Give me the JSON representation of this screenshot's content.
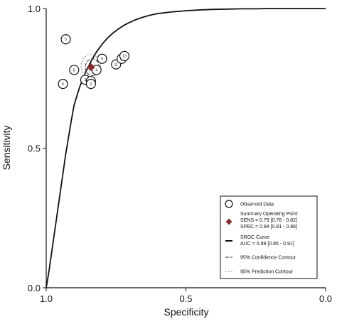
{
  "chart_data": {
    "type": "scatter",
    "title": "",
    "xlabel": "Specificity",
    "ylabel": "Sensitivity",
    "x_axis_reversed": true,
    "xlim": [
      1.0,
      0.0
    ],
    "ylim": [
      0.0,
      1.0
    ],
    "x_ticks": [
      {
        "value": 1.0,
        "label": "1.0"
      },
      {
        "value": 0.5,
        "label": "0.5"
      },
      {
        "value": 0.0,
        "label": "0.0"
      }
    ],
    "y_ticks": [
      {
        "value": 1.0,
        "label": "1.0"
      },
      {
        "value": 0.5,
        "label": "0.5"
      },
      {
        "value": 0.0,
        "label": "0.0"
      }
    ],
    "grid": false,
    "legend_position": "bottom-right",
    "observed_data": [
      {
        "label": "5",
        "specificity": 0.93,
        "sensitivity": 0.89
      },
      {
        "label": "8",
        "specificity": 0.9,
        "sensitivity": 0.78
      },
      {
        "label": "6",
        "specificity": 0.94,
        "sensitivity": 0.73
      },
      {
        "label": "9",
        "specificity": 0.8,
        "sensitivity": 0.82
      },
      {
        "label": "4",
        "specificity": 0.82,
        "sensitivity": 0.78
      },
      {
        "label": "3",
        "specificity": 0.86,
        "sensitivity": 0.745
      },
      {
        "label": "1",
        "specificity": 0.84,
        "sensitivity": 0.74
      },
      {
        "label": "2",
        "specificity": 0.84,
        "sensitivity": 0.73
      },
      {
        "label": "11",
        "specificity": 0.75,
        "sensitivity": 0.8
      },
      {
        "label": "12",
        "specificity": 0.73,
        "sensitivity": 0.82
      },
      {
        "label": "13",
        "specificity": 0.72,
        "sensitivity": 0.83
      }
    ],
    "summary_operating_point": {
      "specificity": 0.84,
      "sensitivity": 0.79
    },
    "confidence_contour": {
      "specificity_range": [
        0.81,
        0.86
      ],
      "sensitivity_range": [
        0.76,
        0.82
      ]
    },
    "prediction_contour": {
      "center_specificity": 0.84,
      "center_sensitivity": 0.795,
      "spec_radius": 0.035,
      "sens_radius": 0.04
    },
    "sroc_curve": {
      "x": [
        1.0,
        0.99,
        0.98,
        0.97,
        0.96,
        0.95,
        0.94,
        0.93,
        0.92,
        0.91,
        0.9,
        0.88,
        0.86,
        0.84,
        0.82,
        0.8,
        0.78,
        0.76,
        0.74,
        0.72,
        0.7,
        0.68,
        0.66,
        0.64,
        0.62,
        0.6,
        0.55,
        0.5,
        0.45,
        0.4,
        0.35,
        0.3,
        0.25,
        0.2,
        0.15,
        0.1,
        0.05,
        0.0
      ],
      "y": [
        0.0,
        0.06,
        0.13,
        0.2,
        0.27,
        0.34,
        0.41,
        0.48,
        0.54,
        0.6,
        0.655,
        0.72,
        0.77,
        0.81,
        0.845,
        0.872,
        0.895,
        0.913,
        0.928,
        0.941,
        0.951,
        0.96,
        0.967,
        0.973,
        0.978,
        0.982,
        0.988,
        0.992,
        0.995,
        0.997,
        0.998,
        0.999,
        0.999,
        1.0,
        1.0,
        1.0,
        1.0,
        1.0
      ]
    },
    "legend": {
      "observed": "Observed Data",
      "summary_title": "Summary Operating Point",
      "summary_sens": "SENS = 0.79 [0.76 - 0.82]",
      "summary_spec": "SPEC = 0.84 [0.81 - 0.86]",
      "sroc_title": "SROC Curve",
      "sroc_auc": "AUC = 0.89 [0.85 - 0.91]",
      "confidence": "95% Confidence Contour",
      "prediction": "95% Prediction Contour"
    },
    "colors": {
      "summary_point": "#8b2b2b",
      "prediction_contour": "#888888",
      "axis": "#111111"
    }
  }
}
